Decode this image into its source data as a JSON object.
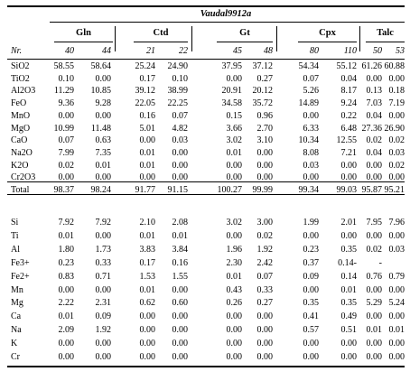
{
  "sample": "Vaudal9912a",
  "nr_label": "Nr.",
  "groups": [
    "Gln",
    "Ctd",
    "Gt",
    "Cpx",
    "Talc"
  ],
  "analyses": [
    "40",
    "44",
    "21",
    "22",
    "45",
    "48",
    "80",
    "110",
    "50",
    "53"
  ],
  "oxides": [
    {
      "label": "SiO2",
      "values": [
        "58.55",
        "58.64",
        "25.24",
        "24.90",
        "37.95",
        "37.12",
        "54.34",
        "55.12",
        "61.26",
        "60.88"
      ]
    },
    {
      "label": "TiO2",
      "values": [
        "0.10",
        "0.00",
        "0.17",
        "0.10",
        "0.00",
        "0.27",
        "0.07",
        "0.04",
        "0.00",
        "0.00"
      ]
    },
    {
      "label": "Al2O3",
      "values": [
        "11.29",
        "10.85",
        "39.12",
        "38.99",
        "20.91",
        "20.12",
        "5.26",
        "8.17",
        "0.13",
        "0.18"
      ]
    },
    {
      "label": "FeO",
      "values": [
        "9.36",
        "9.28",
        "22.05",
        "22.25",
        "34.58",
        "35.72",
        "14.89",
        "9.24",
        "7.03",
        "7.19"
      ]
    },
    {
      "label": "MnO",
      "values": [
        "0.00",
        "0.00",
        "0.16",
        "0.07",
        "0.15",
        "0.96",
        "0.00",
        "0.22",
        "0.04",
        "0.00"
      ]
    },
    {
      "label": "MgO",
      "values": [
        "10.99",
        "11.48",
        "5.01",
        "4.82",
        "3.66",
        "2.70",
        "6.33",
        "6.48",
        "27.36",
        "26.90"
      ]
    },
    {
      "label": "CaO",
      "values": [
        "0.07",
        "0.63",
        "0.00",
        "0.03",
        "3.02",
        "3.10",
        "10.34",
        "12.55",
        "0.02",
        "0.02"
      ]
    },
    {
      "label": "Na2O",
      "values": [
        "7.99",
        "7.35",
        "0.01",
        "0.00",
        "0.01",
        "0.00",
        "8.08",
        "7.21",
        "0.04",
        "0.03"
      ]
    },
    {
      "label": "K2O",
      "values": [
        "0.02",
        "0.01",
        "0.01",
        "0.00",
        "0.00",
        "0.00",
        "0.03",
        "0.00",
        "0.00",
        "0.02"
      ]
    },
    {
      "label": "Cr2O3",
      "values": [
        "0.00",
        "0.00",
        "0.00",
        "0.00",
        "0.00",
        "0.00",
        "0.00",
        "0.00",
        "0.00",
        "0.00"
      ]
    },
    {
      "label": "Total",
      "values": [
        "98.37",
        "98.24",
        "91.77",
        "91.15",
        "100.27",
        "99.99",
        "99.34",
        "99.03",
        "95.87",
        "95.21"
      ]
    }
  ],
  "cations": [
    {
      "label": "Si",
      "values": [
        "7.92",
        "7.92",
        "2.10",
        "2.08",
        "3.02",
        "3.00",
        "1.99",
        "2.01",
        "7.95",
        "7.96"
      ]
    },
    {
      "label": "Ti",
      "values": [
        "0.01",
        "0.00",
        "0.01",
        "0.01",
        "0.00",
        "0.02",
        "0.00",
        "0.00",
        "0.00",
        "0.00"
      ]
    },
    {
      "label": "Al",
      "values": [
        "1.80",
        "1.73",
        "3.83",
        "3.84",
        "1.96",
        "1.92",
        "0.23",
        "0.35",
        "0.02",
        "0.03"
      ]
    },
    {
      "label": "Fe3+",
      "values": [
        "0.23",
        "0.33",
        "0.17",
        "0.16",
        "2.30",
        "2.42",
        "0.37",
        "0.14-",
        "-",
        ""
      ]
    },
    {
      "label": "Fe2+",
      "values": [
        "0.83",
        "0.71",
        "1.53",
        "1.55",
        "0.01",
        "0.07",
        "0.09",
        "0.14",
        "0.76",
        "0.79"
      ]
    },
    {
      "label": "Mn",
      "values": [
        "0.00",
        "0.00",
        "0.01",
        "0.00",
        "0.43",
        "0.33",
        "0.00",
        "0.01",
        "0.00",
        "0.00"
      ]
    },
    {
      "label": "Mg",
      "values": [
        "2.22",
        "2.31",
        "0.62",
        "0.60",
        "0.26",
        "0.27",
        "0.35",
        "0.35",
        "5.29",
        "5.24"
      ]
    },
    {
      "label": "Ca",
      "values": [
        "0.01",
        "0.09",
        "0.00",
        "0.00",
        "0.00",
        "0.00",
        "0.41",
        "0.49",
        "0.00",
        "0.00"
      ]
    },
    {
      "label": "Na",
      "values": [
        "2.09",
        "1.92",
        "0.00",
        "0.00",
        "0.00",
        "0.00",
        "0.57",
        "0.51",
        "0.01",
        "0.01"
      ]
    },
    {
      "label": "K",
      "values": [
        "0.00",
        "0.00",
        "0.00",
        "0.00",
        "0.00",
        "0.00",
        "0.00",
        "0.00",
        "0.00",
        "0.00"
      ]
    },
    {
      "label": "Cr",
      "values": [
        "0.00",
        "0.00",
        "0.00",
        "0.00",
        "0.00",
        "0.00",
        "0.00",
        "0.00",
        "0.00",
        "0.00"
      ]
    }
  ]
}
